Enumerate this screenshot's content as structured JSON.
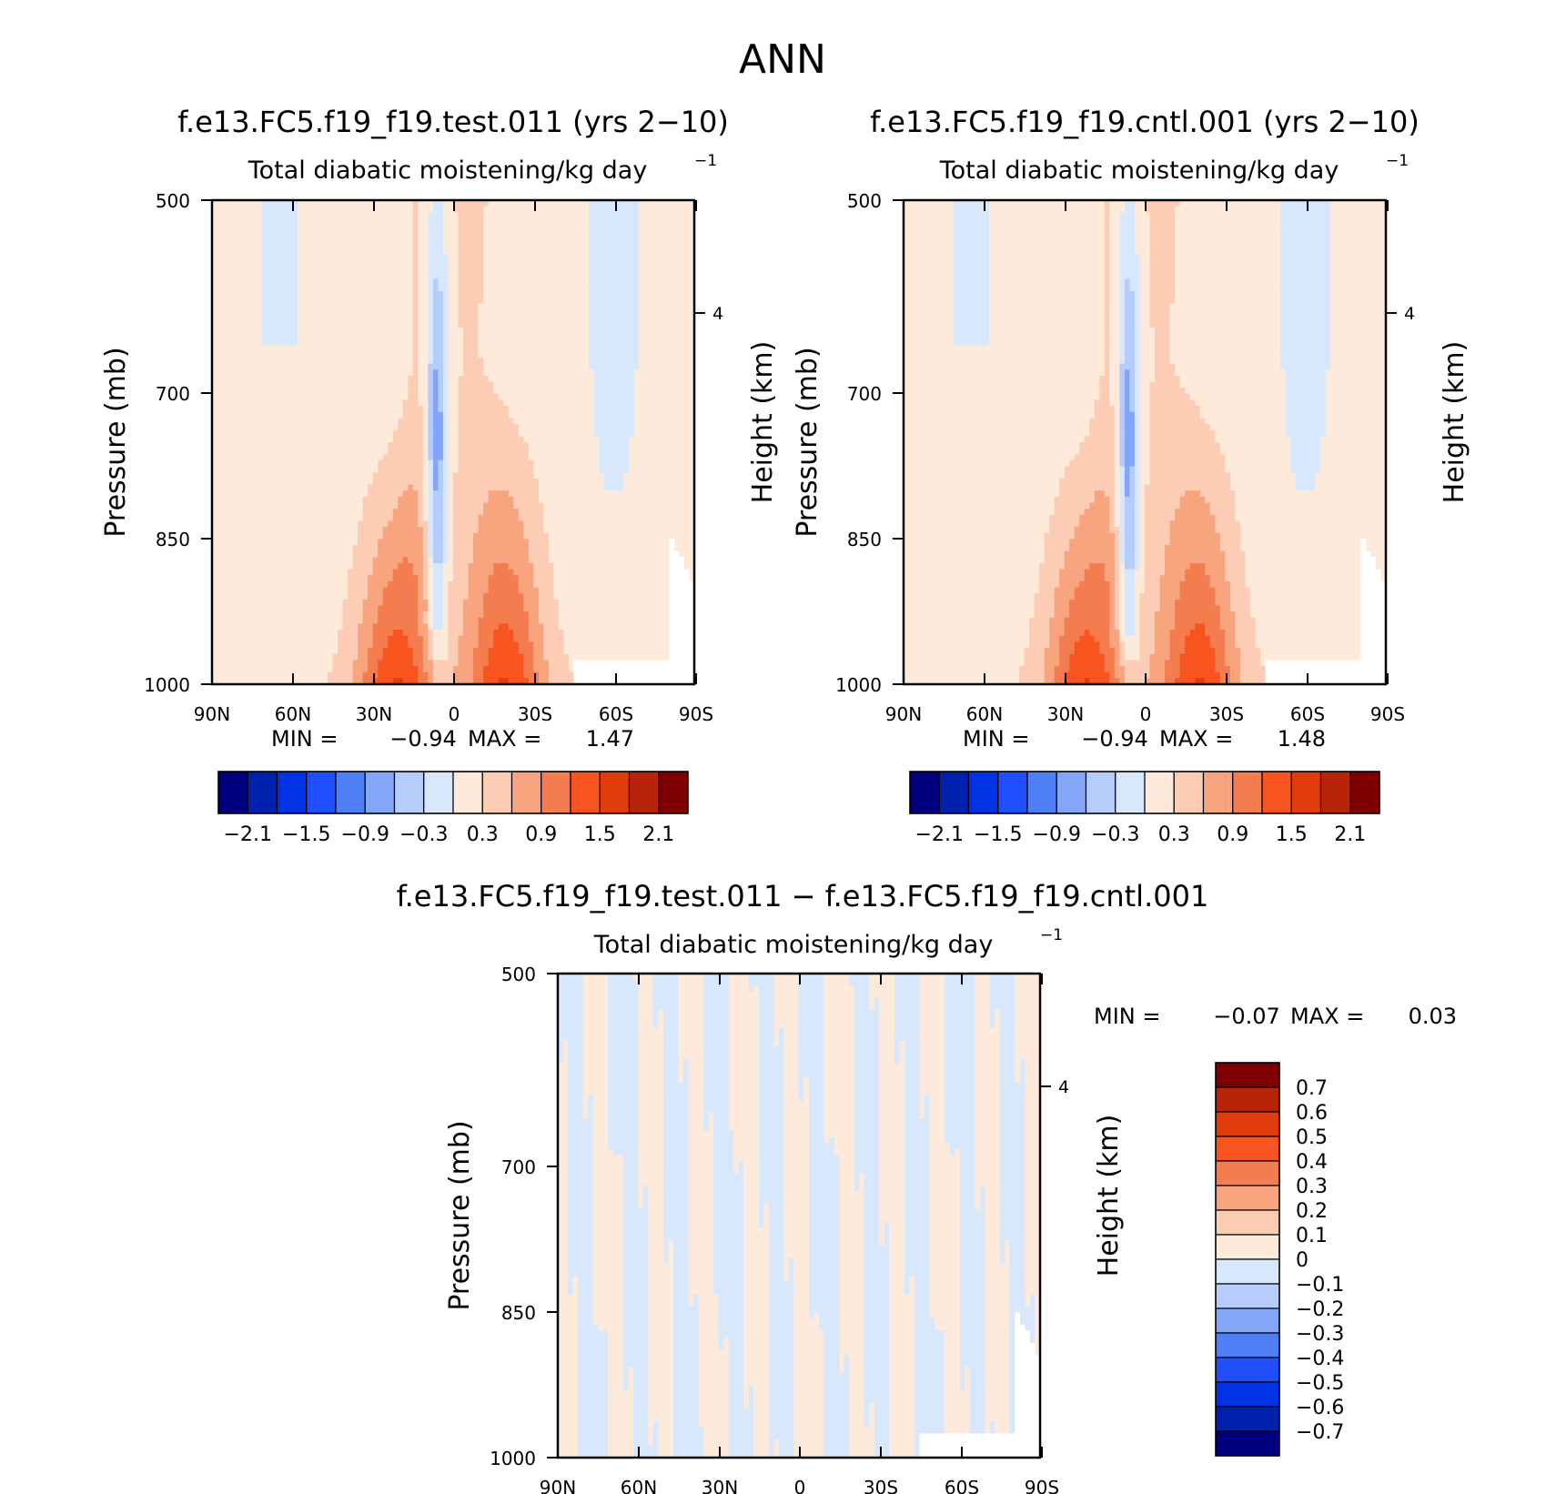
{
  "figure": {
    "title": "ANN"
  },
  "colors": {
    "full": [
      "#00007f",
      "#0021ae",
      "#0033e5",
      "#1f4fff",
      "#4f7ff6",
      "#85a6f8",
      "#b6cdfb",
      "#d8e8fc",
      "#feeadb",
      "#fccdb4",
      "#f7a47f",
      "#f47d4f",
      "#f8541f",
      "#e03c0c",
      "#b82408",
      "#7f0000"
    ],
    "diff": [
      "#00007f",
      "#0021ae",
      "#0033e5",
      "#1f4fff",
      "#4f7ff6",
      "#85a6f8",
      "#b6cdfb",
      "#d8e8fc",
      "#feeadb",
      "#fccdb4",
      "#f7a47f",
      "#f47d4f",
      "#f8541f",
      "#e03c0c",
      "#b82408",
      "#7f0000"
    ]
  },
  "chart_data": [
    {
      "type": "heatmap",
      "case_title": "f.e13.FC5.f19_f19.test.011 (yrs 2−10)",
      "title": "Total diabatic moistening/kg day",
      "title_exponent": "−1",
      "ylabel": "Pressure (mb)",
      "ylabel_right": "Height (km)",
      "x_ticks": [
        "90N",
        "60N",
        "30N",
        "0",
        "30S",
        "60S",
        "90S"
      ],
      "y_ticks": [
        "500",
        "700",
        "850",
        "1000"
      ],
      "right_ticks": [
        "4"
      ],
      "xlim": [
        90,
        -90
      ],
      "ylim": [
        1000,
        500
      ],
      "min_label": "MIN =",
      "min": "−0.94",
      "max_label": "MAX =",
      "max": "1.47",
      "colorbar_labels": [
        "−2.1",
        "−1.5",
        "−0.9",
        "−0.3",
        "0.3",
        "0.9",
        "1.5",
        "2.1"
      ],
      "variant": 0
    },
    {
      "type": "heatmap",
      "case_title": "f.e13.FC5.f19_f19.cntl.001 (yrs 2−10)",
      "title": "Total diabatic moistening/kg day",
      "title_exponent": "−1",
      "ylabel": "Pressure (mb)",
      "ylabel_right": "Height (km)",
      "x_ticks": [
        "90N",
        "60N",
        "30N",
        "0",
        "30S",
        "60S",
        "90S"
      ],
      "y_ticks": [
        "500",
        "700",
        "850",
        "1000"
      ],
      "right_ticks": [
        "4"
      ],
      "xlim": [
        90,
        -90
      ],
      "ylim": [
        1000,
        500
      ],
      "min_label": "MIN =",
      "min": "−0.94",
      "max_label": "MAX =",
      "max": "1.48",
      "colorbar_labels": [
        "−2.1",
        "−1.5",
        "−0.9",
        "−0.3",
        "0.3",
        "0.9",
        "1.5",
        "2.1"
      ],
      "variant": 1
    },
    {
      "type": "heatmap",
      "case_title": "f.e13.FC5.f19_f19.test.011 − f.e13.FC5.f19_f19.cntl.001",
      "title": "Total diabatic moistening/kg day",
      "title_exponent": "−1",
      "ylabel": "Pressure (mb)",
      "ylabel_right": "Height (km)",
      "x_ticks": [
        "90N",
        "60N",
        "30N",
        "0",
        "30S",
        "60S",
        "90S"
      ],
      "y_ticks": [
        "500",
        "700",
        "850",
        "1000"
      ],
      "right_ticks": [
        "4"
      ],
      "xlim": [
        90,
        -90
      ],
      "ylim": [
        1000,
        500
      ],
      "min_label": "MIN =",
      "min": "−0.07",
      "max_label": "MAX =",
      "max": "0.03",
      "colorbar_labels": [
        "0.7",
        "0.6",
        "0.5",
        "0.4",
        "0.3",
        "0.2",
        "0.1",
        "0",
        "−0.1",
        "−0.2",
        "−0.3",
        "−0.4",
        "−0.5",
        "−0.6",
        "−0.7"
      ]
    }
  ]
}
